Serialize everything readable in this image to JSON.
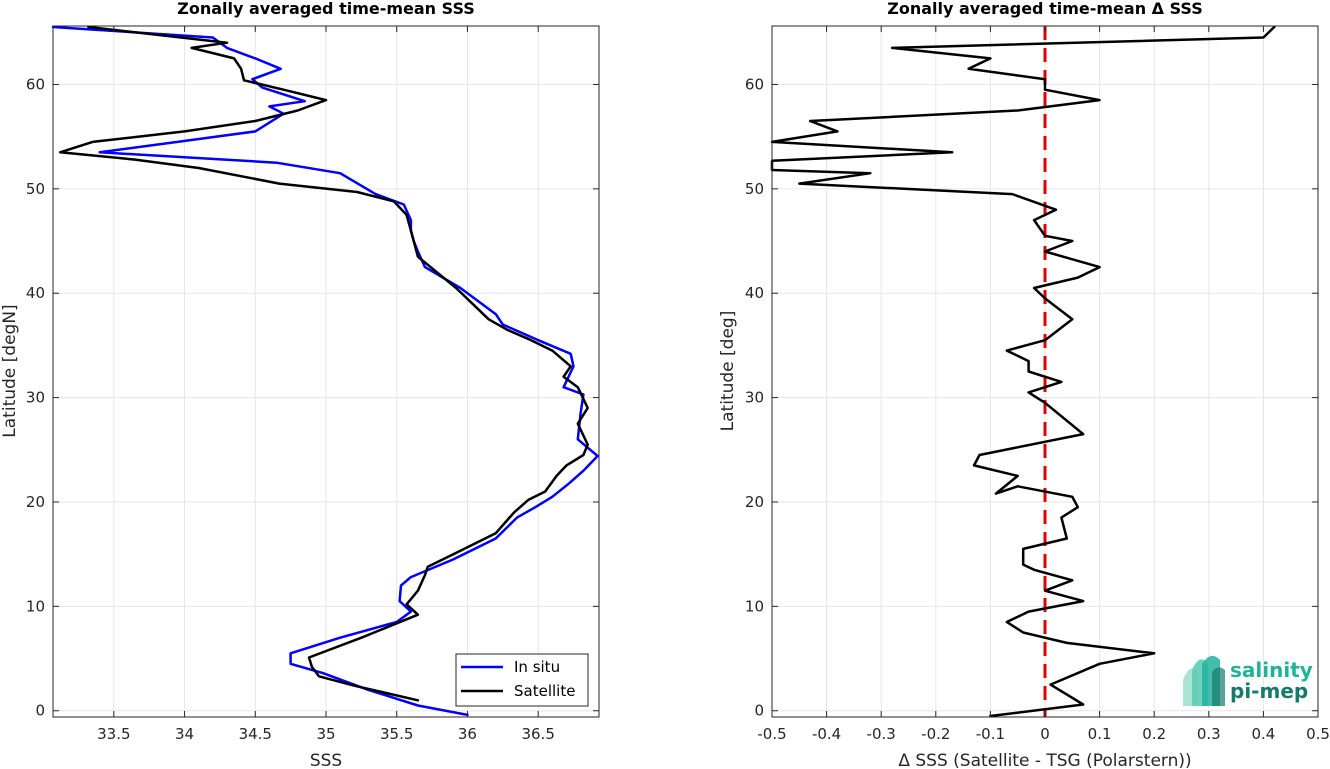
{
  "colors": {
    "in_situ": "#0000ff",
    "satellite": "#000000",
    "zero_line": "#e00000",
    "grid": "#e6e6e6"
  },
  "logo": {
    "line1": "salinity",
    "line2": "pi-mep"
  },
  "chart_data": [
    {
      "type": "line",
      "title": "Zonally averaged time-mean SSS",
      "xlabel": "SSS",
      "ylabel": "Latitude [degN]",
      "xlim": [
        33.07,
        36.93
      ],
      "ylim": [
        -0.6,
        65.6
      ],
      "xticks": [
        33.5,
        34,
        34.5,
        35,
        35.5,
        36,
        36.5
      ],
      "xtick_labels": [
        "33.5",
        "34",
        "34.5",
        "35",
        "35.5",
        "36",
        "36.5"
      ],
      "yticks": [
        0,
        10,
        20,
        30,
        40,
        50,
        60
      ],
      "ytick_labels": [
        "0",
        "10",
        "20",
        "30",
        "40",
        "50",
        "60"
      ],
      "grid": true,
      "legend": {
        "location": "bottom-right",
        "entries": [
          "In situ",
          "Satellite"
        ]
      },
      "series": [
        {
          "name": "In situ",
          "color": "#0000ff",
          "points": [
            [
              36.0,
              -0.4
            ],
            [
              35.65,
              0.5
            ],
            [
              35.3,
              2.0
            ],
            [
              34.98,
              3.6
            ],
            [
              34.75,
              4.5
            ],
            [
              34.75,
              5.5
            ],
            [
              35.1,
              7.0
            ],
            [
              35.5,
              8.5
            ],
            [
              35.6,
              9.5
            ],
            [
              35.52,
              10.5
            ],
            [
              35.53,
              12.0
            ],
            [
              35.6,
              12.8
            ],
            [
              35.9,
              14.5
            ],
            [
              36.2,
              16.5
            ],
            [
              36.35,
              18.5
            ],
            [
              36.48,
              19.5
            ],
            [
              36.6,
              20.5
            ],
            [
              36.72,
              21.8
            ],
            [
              36.82,
              23.0
            ],
            [
              36.92,
              24.4
            ],
            [
              36.78,
              26.0
            ],
            [
              36.8,
              28.5
            ],
            [
              36.82,
              30.3
            ],
            [
              36.68,
              31.0
            ],
            [
              36.75,
              33.0
            ],
            [
              36.73,
              34.2
            ],
            [
              36.5,
              35.5
            ],
            [
              36.25,
              37.0
            ],
            [
              36.2,
              38.0
            ],
            [
              35.95,
              40.5
            ],
            [
              35.7,
              42.5
            ],
            [
              35.65,
              44.0
            ],
            [
              35.62,
              45.0
            ],
            [
              35.6,
              46.0
            ],
            [
              35.6,
              47.0
            ],
            [
              35.55,
              48.5
            ],
            [
              35.35,
              49.5
            ],
            [
              35.1,
              51.5
            ],
            [
              34.65,
              52.5
            ],
            [
              33.4,
              53.5
            ],
            [
              33.95,
              54.5
            ],
            [
              34.5,
              55.5
            ],
            [
              34.7,
              57.2
            ],
            [
              34.6,
              57.9
            ],
            [
              34.85,
              58.4
            ],
            [
              34.55,
              59.7
            ],
            [
              34.48,
              60.5
            ],
            [
              34.68,
              61.5
            ],
            [
              34.5,
              62.5
            ],
            [
              34.3,
              63.5
            ],
            [
              34.2,
              64.5
            ],
            [
              33.07,
              65.5
            ]
          ]
        },
        {
          "name": "Satellite",
          "color": "#000000",
          "points": [
            [
              35.65,
              1.0
            ],
            [
              35.2,
              2.4
            ],
            [
              34.95,
              3.3
            ],
            [
              34.9,
              4.2
            ],
            [
              34.88,
              5.1
            ],
            [
              35.25,
              7.0
            ],
            [
              35.65,
              9.2
            ],
            [
              35.57,
              10.2
            ],
            [
              35.65,
              11.5
            ],
            [
              35.7,
              13.0
            ],
            [
              35.72,
              13.8
            ],
            [
              35.9,
              15.0
            ],
            [
              36.2,
              17.0
            ],
            [
              36.33,
              19.0
            ],
            [
              36.43,
              20.2
            ],
            [
              36.55,
              21.0
            ],
            [
              36.63,
              22.5
            ],
            [
              36.7,
              23.5
            ],
            [
              36.82,
              24.5
            ],
            [
              36.85,
              25.5
            ],
            [
              36.78,
              27.5
            ],
            [
              36.85,
              29.0
            ],
            [
              36.78,
              31.0
            ],
            [
              36.68,
              32.0
            ],
            [
              36.73,
              33.0
            ],
            [
              36.6,
              34.5
            ],
            [
              36.45,
              35.5
            ],
            [
              36.28,
              36.5
            ],
            [
              36.15,
              37.5
            ],
            [
              35.92,
              40.5
            ],
            [
              35.65,
              43.5
            ],
            [
              35.62,
              45.0
            ],
            [
              35.6,
              46.0
            ],
            [
              35.57,
              47.5
            ],
            [
              35.48,
              48.8
            ],
            [
              35.22,
              49.7
            ],
            [
              34.67,
              50.5
            ],
            [
              34.1,
              52.0
            ],
            [
              33.65,
              52.8
            ],
            [
              33.12,
              53.5
            ],
            [
              33.35,
              54.5
            ],
            [
              34.0,
              55.5
            ],
            [
              34.5,
              56.5
            ],
            [
              34.8,
              57.5
            ],
            [
              35.0,
              58.5
            ],
            [
              34.7,
              59.5
            ],
            [
              34.42,
              60.4
            ],
            [
              34.4,
              61.5
            ],
            [
              34.35,
              62.5
            ],
            [
              34.05,
              63.5
            ],
            [
              34.3,
              64.0
            ],
            [
              33.32,
              65.5
            ]
          ]
        }
      ]
    },
    {
      "type": "line",
      "title": "Zonally averaged time-mean Δ SSS",
      "xlabel": "Δ SSS (Satellite - TSG (Polarstern))",
      "ylabel": "Latitude [deg]",
      "xlim": [
        -0.5,
        0.5
      ],
      "ylim": [
        -0.6,
        65.6
      ],
      "xticks": [
        -0.5,
        -0.4,
        -0.3,
        -0.2,
        -0.1,
        0,
        0.1,
        0.2,
        0.3,
        0.4,
        0.5
      ],
      "xtick_labels": [
        "-0.5",
        "-0.4",
        "-0.3",
        "-0.2",
        "-0.1",
        "0",
        "0.1",
        "0.2",
        "0.3",
        "0.4",
        "0.5"
      ],
      "yticks": [
        0,
        10,
        20,
        30,
        40,
        50,
        60
      ],
      "ytick_labels": [
        "0",
        "10",
        "20",
        "30",
        "40",
        "50",
        "60"
      ],
      "grid": true,
      "reference_line": {
        "x": 0,
        "style": "dashed",
        "color": "#e00000"
      },
      "series": [
        {
          "color": "#000000",
          "points": [
            [
              -0.1,
              -0.5
            ],
            [
              0.07,
              0.6
            ],
            [
              0.01,
              2.5
            ],
            [
              0.1,
              4.5
            ],
            [
              0.2,
              5.5
            ],
            [
              0.04,
              6.5
            ],
            [
              -0.04,
              7.5
            ],
            [
              -0.07,
              8.5
            ],
            [
              -0.03,
              9.5
            ],
            [
              0.07,
              10.5
            ],
            [
              0.0,
              11.5
            ],
            [
              0.05,
              12.5
            ],
            [
              -0.02,
              13.5
            ],
            [
              -0.04,
              14.0
            ],
            [
              -0.04,
              15.5
            ],
            [
              0.04,
              16.5
            ],
            [
              0.03,
              18.5
            ],
            [
              0.06,
              19.5
            ],
            [
              0.05,
              20.5
            ],
            [
              -0.05,
              21.5
            ],
            [
              -0.09,
              20.8
            ],
            [
              -0.05,
              22.5
            ],
            [
              -0.13,
              23.5
            ],
            [
              -0.12,
              24.5
            ],
            [
              0.07,
              26.5
            ],
            [
              0.0,
              29.5
            ],
            [
              -0.03,
              30.5
            ],
            [
              0.03,
              31.5
            ],
            [
              -0.03,
              32.5
            ],
            [
              -0.03,
              33.5
            ],
            [
              -0.07,
              34.5
            ],
            [
              0.0,
              35.5
            ],
            [
              0.05,
              37.5
            ],
            [
              0.0,
              39.5
            ],
            [
              -0.02,
              40.5
            ],
            [
              0.06,
              41.5
            ],
            [
              0.1,
              42.5
            ],
            [
              0.0,
              44.0
            ],
            [
              0.05,
              45.0
            ],
            [
              0.0,
              45.5
            ],
            [
              -0.02,
              47.0
            ],
            [
              0.02,
              48.0
            ],
            [
              -0.06,
              49.5
            ],
            [
              -0.45,
              50.5
            ],
            [
              -0.32,
              51.5
            ],
            [
              -0.5,
              51.8
            ],
            [
              -0.5,
              52.7
            ],
            [
              -0.17,
              53.5
            ],
            [
              -0.5,
              54.5
            ],
            [
              -0.38,
              55.5
            ],
            [
              -0.43,
              56.5
            ],
            [
              -0.05,
              57.5
            ],
            [
              0.1,
              58.5
            ],
            [
              0.0,
              59.5
            ],
            [
              0.0,
              60.5
            ],
            [
              -0.14,
              61.5
            ],
            [
              -0.1,
              62.5
            ],
            [
              -0.28,
              63.5
            ],
            [
              0.4,
              64.5
            ],
            [
              0.42,
              65.5
            ]
          ]
        }
      ]
    }
  ]
}
